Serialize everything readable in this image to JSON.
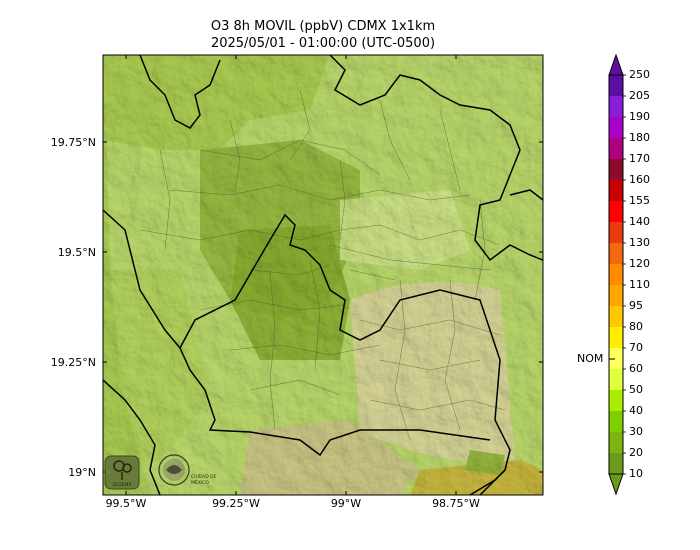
{
  "title": {
    "line1": "O3 8h MOVIL (ppbV) CDMX 1x1km",
    "line2": "2025/05/01 - 01:00:00 (UTC-0500)"
  },
  "map": {
    "y_ticks": [
      "19.75°N",
      "19.5°N",
      "19.25°N",
      "19°N"
    ],
    "x_ticks": [
      "99.5°W",
      "99.25°W",
      "99°W",
      "98.75°W"
    ],
    "base_color": "#b9d86a",
    "dominant_range_ppbv": "30-60",
    "logos": {
      "sedema_text": "SEDEMA",
      "cdmx_text": "CIUDAD DE MÉXICO"
    }
  },
  "colorbar": {
    "levels": [
      "250",
      "205",
      "190",
      "180",
      "170",
      "160",
      "155",
      "140",
      "130",
      "120",
      "110",
      "95",
      "80",
      "70",
      "60",
      "50",
      "40",
      "30",
      "20",
      "10"
    ],
    "colors": [
      "#5a0fa0",
      "#8a1ed8",
      "#a800c8",
      "#b00080",
      "#8c0a2a",
      "#c80000",
      "#ff0000",
      "#e83c10",
      "#f26a10",
      "#ff8c00",
      "#ffa500",
      "#ffc800",
      "#ffee00",
      "#ffff60",
      "#dfff40",
      "#a8ee00",
      "#7fcf00",
      "#7ab510",
      "#6c9a1c"
    ],
    "nom_label": "NOM"
  }
}
